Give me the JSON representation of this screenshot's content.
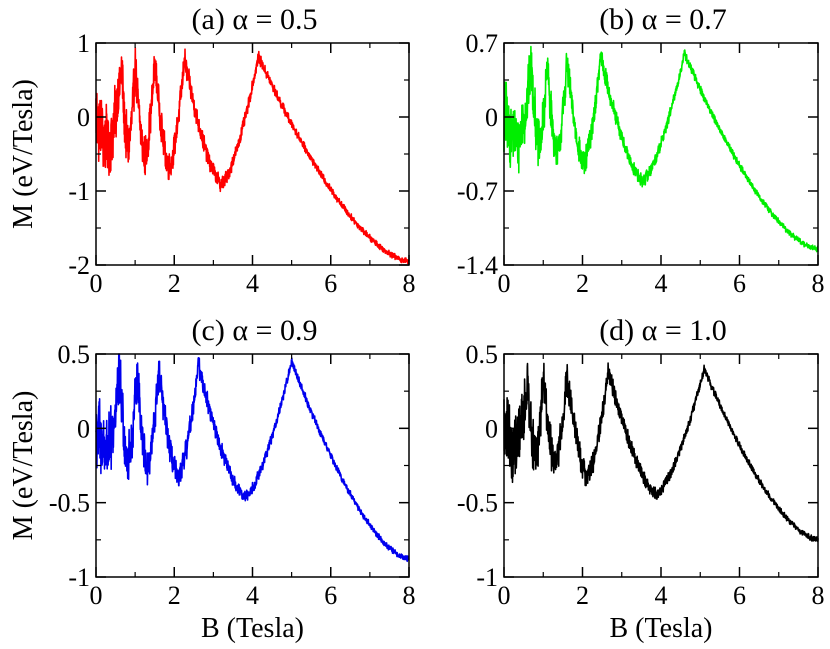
{
  "figure": {
    "ylabel": "M (eV/Tesla)",
    "xlabel": "B (Tesla)"
  },
  "chart_data": [
    {
      "type": "line",
      "title": "(a) α = 0.5",
      "color": "#ff0000",
      "xlim": [
        0,
        8
      ],
      "ylim": [
        -2,
        1
      ],
      "xticks": [
        0,
        2,
        4,
        6,
        8
      ],
      "xticklabels": [
        "0",
        "2",
        "4",
        "6",
        "8"
      ],
      "yticks": [
        -2,
        -1,
        0,
        1
      ],
      "yticklabels": [
        "-2",
        "-1",
        "0",
        "1"
      ],
      "xlabel": "",
      "ylabel": "M (eV/Tesla)",
      "peaks_B": [
        0.65,
        1.0,
        1.5,
        2.25,
        4.15
      ],
      "peak_M": 0.82,
      "trough_M": -0.9,
      "end_M": -1.95,
      "noise": 0.55
    },
    {
      "type": "line",
      "title": "(b) α = 0.7",
      "color": "#00ee00",
      "xlim": [
        0,
        8
      ],
      "ylim": [
        -1.4,
        0.7
      ],
      "xticks": [
        0,
        2,
        4,
        6,
        8
      ],
      "xticklabels": [
        "0",
        "2",
        "4",
        "6",
        "8"
      ],
      "yticks": [
        -1.4,
        -0.7,
        0,
        0.7
      ],
      "yticklabels": [
        "-1.4",
        "-0.7",
        "0",
        "0.7"
      ],
      "xlabel": "",
      "ylabel": "",
      "peaks_B": [
        0.7,
        1.1,
        1.6,
        2.45,
        4.6
      ],
      "peak_M": 0.6,
      "trough_M": -0.6,
      "end_M": -1.25,
      "noise": 0.38
    },
    {
      "type": "line",
      "title": "(c) α = 0.9",
      "color": "#0000ee",
      "xlim": [
        0,
        8
      ],
      "ylim": [
        -1,
        0.5
      ],
      "xticks": [
        0,
        2,
        4,
        6,
        8
      ],
      "xticklabels": [
        "0",
        "2",
        "4",
        "6",
        "8"
      ],
      "yticks": [
        -1,
        -0.5,
        0,
        0.5
      ],
      "yticklabels": [
        "-1",
        "-0.5",
        "0",
        "0.5"
      ],
      "xlabel": "B (Tesla)",
      "ylabel": "M (eV/Tesla)",
      "peaks_B": [
        0.6,
        1.05,
        1.6,
        2.6,
        5.0
      ],
      "peak_M": 0.45,
      "trough_M": -0.46,
      "end_M": -0.88,
      "noise": 0.28
    },
    {
      "type": "line",
      "title": "(d) α = 1.0",
      "color": "#000000",
      "xlim": [
        0,
        8
      ],
      "ylim": [
        -1,
        0.5
      ],
      "xticks": [
        0,
        2,
        4,
        6,
        8
      ],
      "xticklabels": [
        "0",
        "2",
        "4",
        "6",
        "8"
      ],
      "yticks": [
        -1,
        -0.5,
        0,
        0.5
      ],
      "yticklabels": [
        "-1",
        "-0.5",
        "0",
        "0.5"
      ],
      "xlabel": "B (Tesla)",
      "ylabel": "",
      "peaks_B": [
        0.6,
        1.0,
        1.6,
        2.65,
        5.1
      ],
      "peak_M": 0.4,
      "trough_M": -0.44,
      "end_M": -0.75,
      "noise": 0.26
    }
  ]
}
